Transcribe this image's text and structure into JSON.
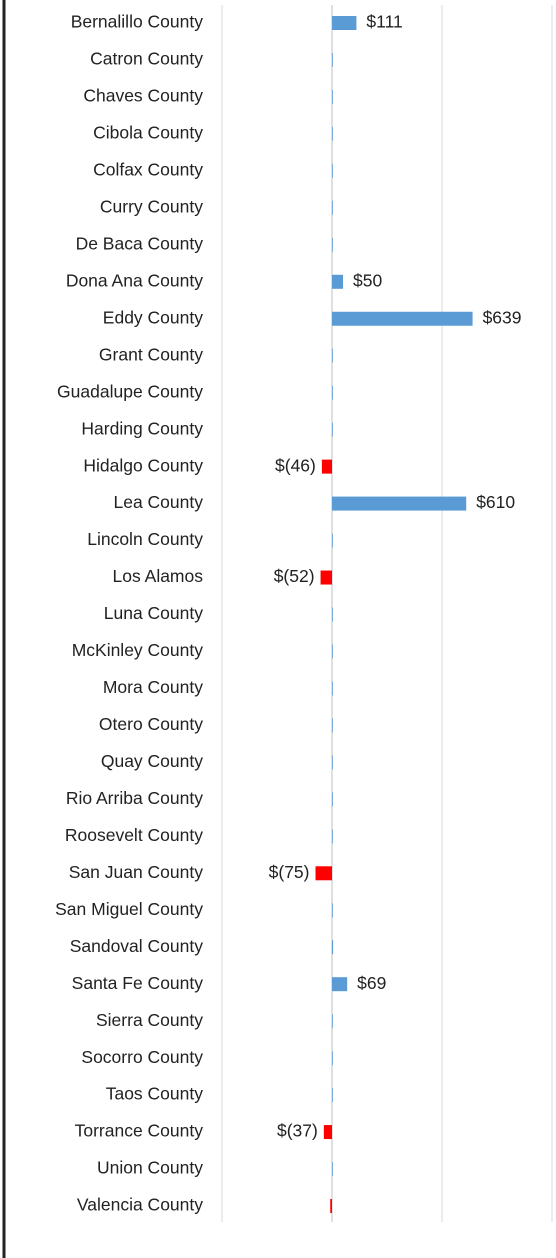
{
  "chart_data": {
    "type": "bar",
    "orientation": "horizontal",
    "categories": [
      "Bernalillo County",
      "Catron County",
      "Chaves County",
      "Cibola County",
      "Colfax County",
      "Curry County",
      "De Baca County",
      "Dona Ana County",
      "Eddy County",
      "Grant County",
      "Guadalupe County",
      "Harding County",
      "Hidalgo County",
      "Lea County",
      "Lincoln County",
      "Los Alamos",
      "Luna County",
      "McKinley County",
      "Mora County",
      "Otero County",
      "Quay County",
      "Rio Arriba County",
      "Roosevelt County",
      "San Juan County",
      "San Miguel County",
      "Sandoval County",
      "Santa Fe County",
      "Sierra County",
      "Socorro County",
      "Taos County",
      "Torrance County",
      "Union County",
      "Valencia County"
    ],
    "values": [
      111,
      0,
      2,
      0,
      0,
      2,
      2,
      50,
      639,
      2,
      0,
      0,
      -46,
      610,
      0,
      -52,
      0,
      2,
      0,
      2,
      2,
      0,
      0,
      -75,
      0,
      5,
      69,
      2,
      2,
      0,
      -37,
      0,
      -8
    ],
    "value_labels": [
      "$111",
      null,
      null,
      null,
      null,
      null,
      null,
      "$50",
      "$639",
      null,
      null,
      null,
      "$(46)",
      "$610",
      null,
      "$(52)",
      null,
      null,
      null,
      null,
      null,
      null,
      null,
      "$(75)",
      null,
      null,
      "$69",
      null,
      null,
      null,
      "$(37)",
      null,
      null
    ],
    "color": "#5b9bd5",
    "negative_color": "#ff0000",
    "xlim": [
      -500,
      1000
    ],
    "xticks": [
      -500,
      0,
      500,
      1000
    ],
    "grid": true
  }
}
